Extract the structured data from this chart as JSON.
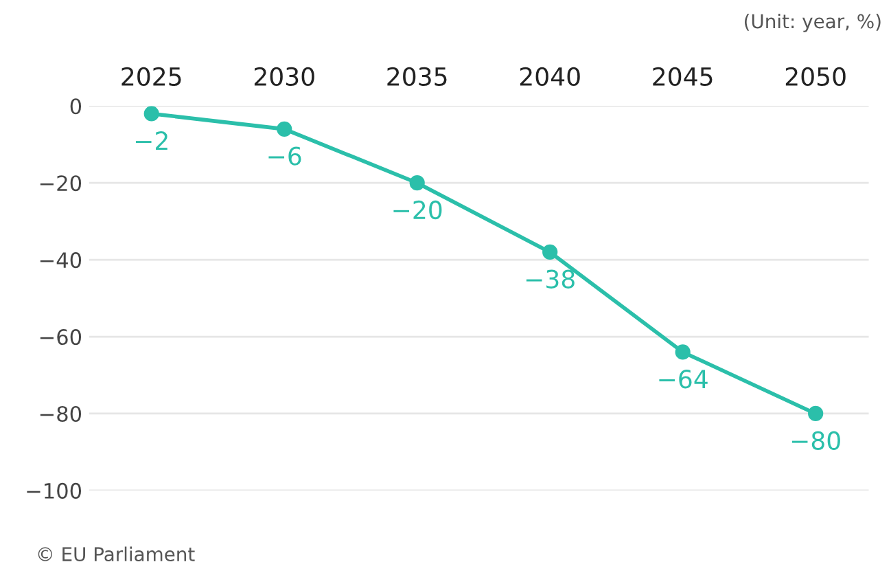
{
  "chart_data": {
    "type": "line",
    "categories": [
      "2025",
      "2030",
      "2035",
      "2040",
      "2045",
      "2050"
    ],
    "series": [
      {
        "color": "#2bbfaa",
        "values": [
          -2,
          -6,
          -20,
          -38,
          -64,
          -80
        ]
      }
    ],
    "ylim": [
      -100,
      0
    ],
    "yticks": [
      -100,
      -80,
      -60,
      -40,
      -20,
      0
    ],
    "grid": "y",
    "marker": "circle",
    "line_style": "solid",
    "data_labels": true,
    "legend": false,
    "annotations": [
      "(Unit: year, %)",
      "© EU Parliament"
    ]
  }
}
